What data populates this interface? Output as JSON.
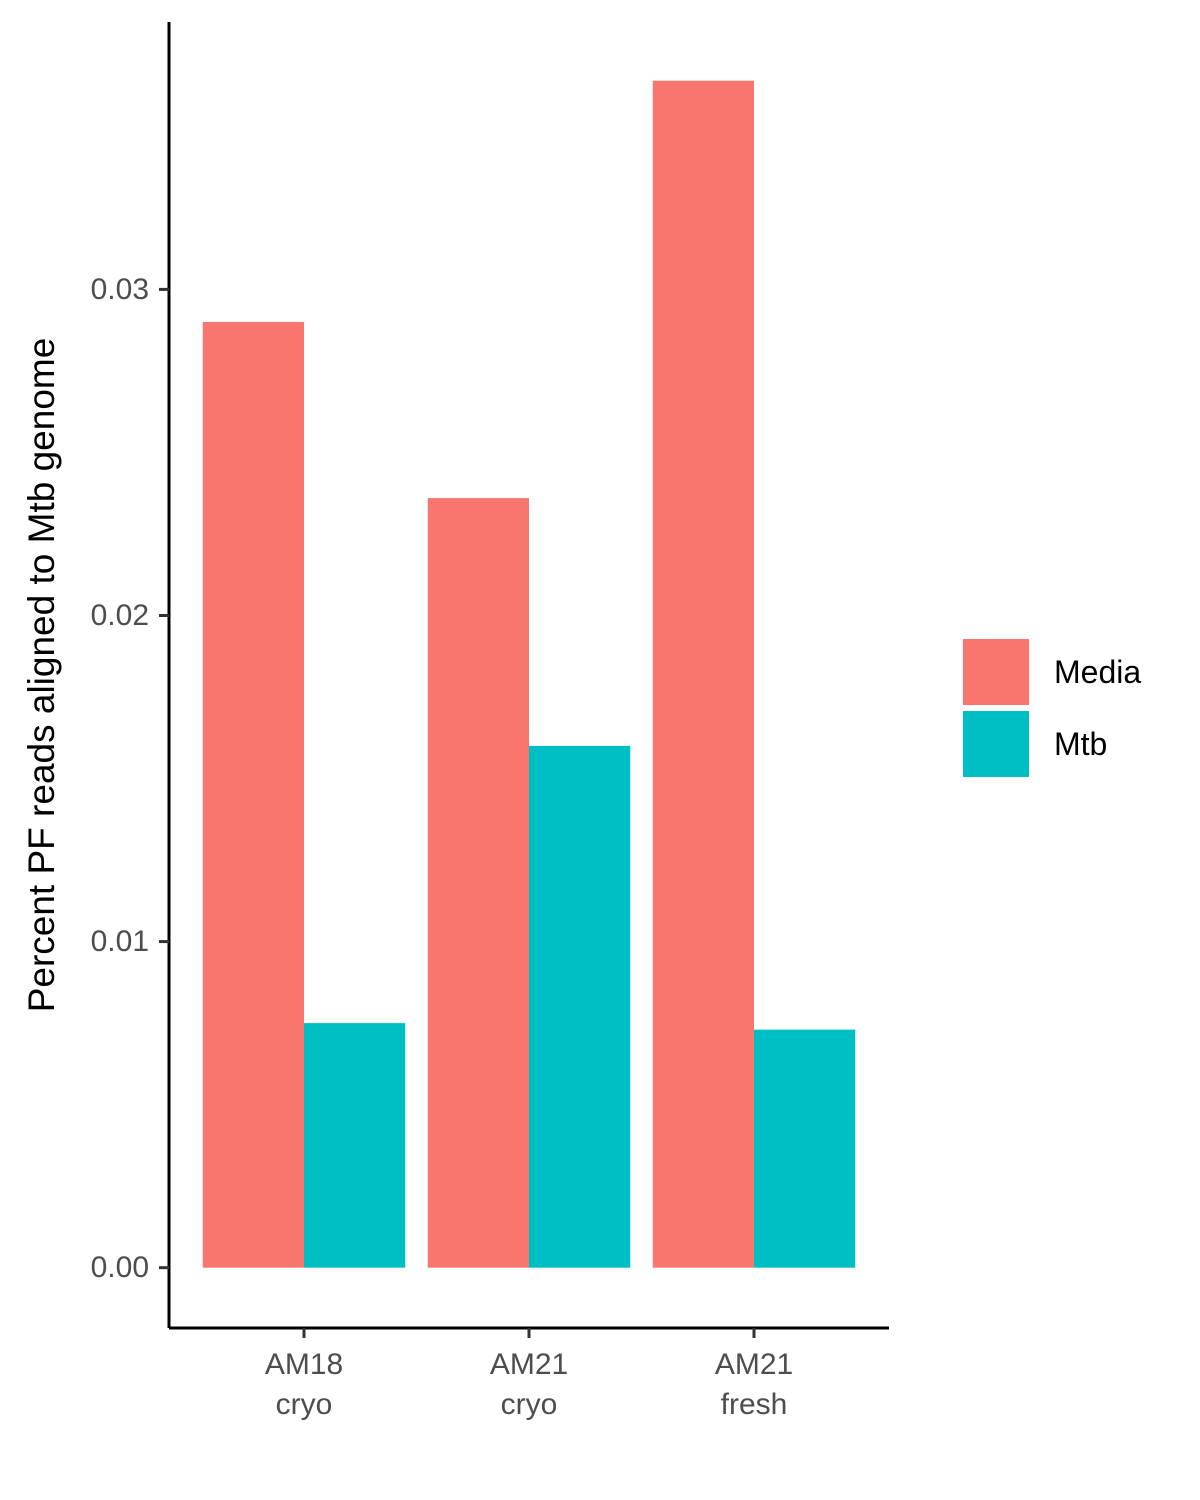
{
  "chart_data": {
    "type": "bar",
    "title": "",
    "xlabel": "",
    "ylabel": "Percent PF reads aligned to Mtb genome",
    "categories": [
      [
        "AM18",
        "cryo"
      ],
      [
        "AM21",
        "cryo"
      ],
      [
        "AM21",
        "fresh"
      ]
    ],
    "series": [
      {
        "name": "Media",
        "color": "#F8766D",
        "values": [
          0.029,
          0.0236,
          0.0364
        ]
      },
      {
        "name": "Mtb",
        "color": "#00BFC4",
        "values": [
          0.0075,
          0.016,
          0.0073
        ]
      }
    ],
    "ylim": [
      -0.00185,
      0.0382
    ],
    "yticks": [
      0.0,
      0.01,
      0.02,
      0.03
    ],
    "ytick_labels": [
      "0.00",
      "0.01",
      "0.02",
      "0.03"
    ],
    "grid": false,
    "legend_position": "right"
  }
}
